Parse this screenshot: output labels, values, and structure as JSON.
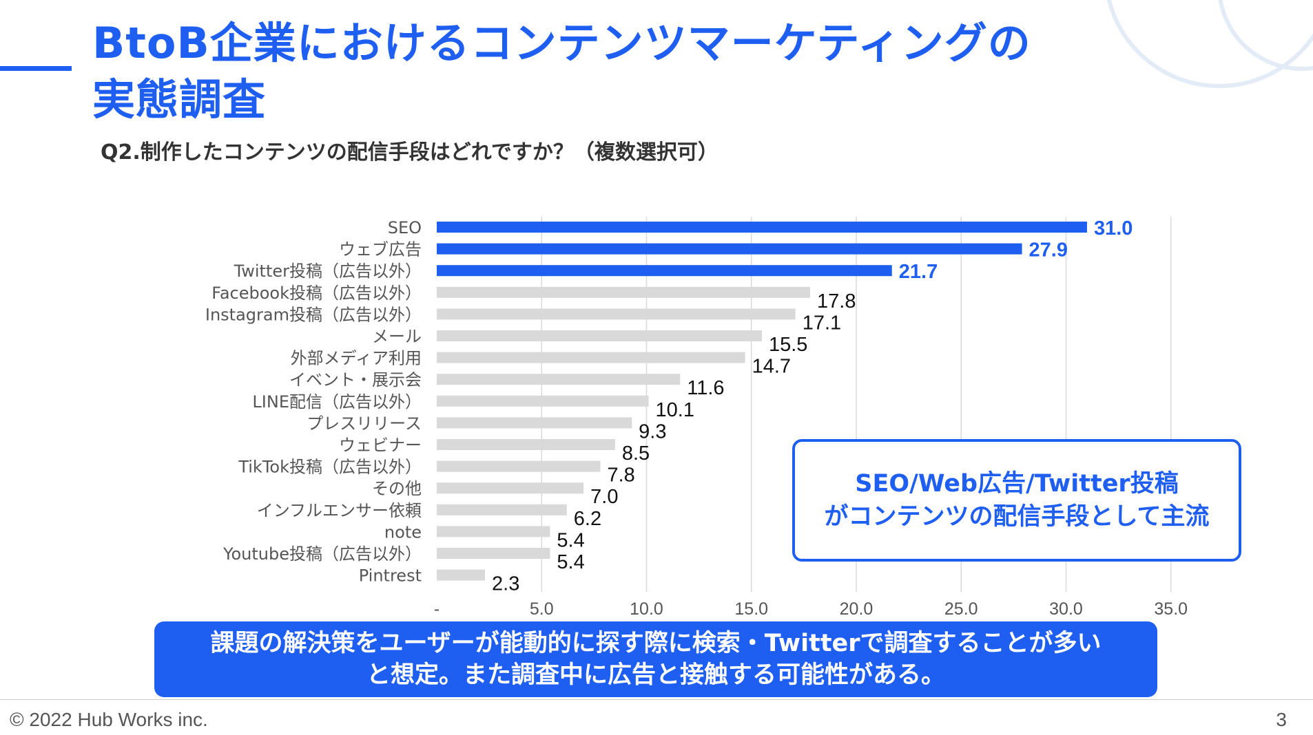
{
  "slide": {
    "title_line1": "BtoB企業におけるコンテンツマーケティングの",
    "title_line2": "実態調査",
    "question": "Q2.制作したコンテンツの配信手段はどれですか？（複数選択可）",
    "callout": {
      "line1": "SEO/Web広告/Twitter投稿",
      "line2": "がコンテンツの配信手段として主流"
    },
    "banner": {
      "line1": "課題の解決策をユーザーが能動的に探す際に検索・Twitterで調査することが多い",
      "line2": "と想定。また調査中に広告と接触する可能性がある。"
    },
    "footer": {
      "copyright": "© 2022 Hub Works inc.",
      "page_number": "3"
    }
  },
  "colors": {
    "accent": "#1e5ef0",
    "bar_grey": "#d9d9d9",
    "text": "#333333",
    "gridline": "#d9d9d9",
    "deco_circle": "#e3ebf7"
  },
  "chart_data": {
    "type": "bar",
    "orientation": "horizontal",
    "categories": [
      "SEO",
      "ウェブ広告",
      "Twitter投稿（広告以外）",
      "Facebook投稿（広告以外）",
      "Instagram投稿（広告以外）",
      "メール",
      "外部メディア利用",
      "イベント・展示会",
      "LINE配信（広告以外）",
      "プレスリリース",
      "ウェビナー",
      "TikTok投稿（広告以外）",
      "その他",
      "インフルエンサー依頼",
      "note",
      "Youtube投稿（広告以外）",
      "Pintrest"
    ],
    "values": [
      31.0,
      27.9,
      21.7,
      17.8,
      17.1,
      15.5,
      14.7,
      11.6,
      10.1,
      9.3,
      8.5,
      7.8,
      7.0,
      6.2,
      5.4,
      5.4,
      2.3
    ],
    "value_labels": [
      "31.0",
      "27.9",
      "21.7",
      "17.8",
      "17.1",
      "15.5",
      "14.7",
      "11.6",
      "10.1",
      "9.3",
      "8.5",
      "7.8",
      "7.0",
      "6.2",
      "5.4",
      "5.4",
      "2.3"
    ],
    "highlighted": [
      true,
      true,
      true,
      false,
      false,
      false,
      false,
      false,
      false,
      false,
      false,
      false,
      false,
      false,
      false,
      false,
      false
    ],
    "x_ticks": [
      0,
      5,
      10,
      15,
      20,
      25,
      30,
      35
    ],
    "x_tick_labels": [
      "-",
      "5.0",
      "10.0",
      "15.0",
      "20.0",
      "25.0",
      "30.0",
      "35.0"
    ],
    "xlim": [
      0,
      35
    ],
    "grid": true,
    "title": "",
    "xlabel": "",
    "ylabel": ""
  }
}
